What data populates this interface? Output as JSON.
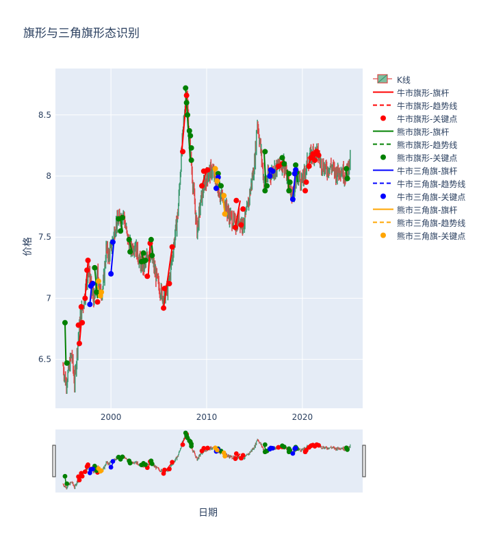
{
  "chart_data": {
    "type": "candlestick",
    "title": "旗形与三角旗形态识别",
    "xlabel": "日期",
    "ylabel": "价格",
    "x_ticks": [
      "2000",
      "2010",
      "2020"
    ],
    "y_ticks": [
      "6.5",
      "7",
      "7.5",
      "8",
      "8.5"
    ],
    "xlim": [
      1994.2,
      2026.3
    ],
    "ylim": [
      6.1,
      8.88
    ],
    "grid": true,
    "legend_position": "right",
    "rangeslider": true,
    "price_path": [
      [
        1995.0,
        6.45
      ],
      [
        1995.3,
        6.3
      ],
      [
        1995.6,
        6.42
      ],
      [
        1995.9,
        6.55
      ],
      [
        1996.2,
        6.3
      ],
      [
        1996.5,
        6.6
      ],
      [
        1996.8,
        6.85
      ],
      [
        1997.1,
        6.95
      ],
      [
        1997.4,
        7.1
      ],
      [
        1997.7,
        7.25
      ],
      [
        1998.0,
        7.05
      ],
      [
        1998.3,
        6.98
      ],
      [
        1998.6,
        7.2
      ],
      [
        1998.9,
        7.05
      ],
      [
        1999.2,
        7.1
      ],
      [
        1999.5,
        7.4
      ],
      [
        1999.8,
        7.35
      ],
      [
        2000.1,
        7.45
      ],
      [
        2000.5,
        7.6
      ],
      [
        2000.9,
        7.65
      ],
      [
        2001.3,
        7.7
      ],
      [
        2001.7,
        7.5
      ],
      [
        2002.1,
        7.4
      ],
      [
        2002.5,
        7.45
      ],
      [
        2003.0,
        7.3
      ],
      [
        2003.5,
        7.25
      ],
      [
        2004.0,
        7.4
      ],
      [
        2004.5,
        7.25
      ],
      [
        2005.0,
        7.1
      ],
      [
        2005.5,
        7.0
      ],
      [
        2006.0,
        7.1
      ],
      [
        2006.5,
        7.4
      ],
      [
        2007.0,
        7.7
      ],
      [
        2007.3,
        8.1
      ],
      [
        2007.7,
        8.55
      ],
      [
        2007.9,
        8.7
      ],
      [
        2008.2,
        8.3
      ],
      [
        2008.6,
        7.9
      ],
      [
        2009.0,
        7.55
      ],
      [
        2009.4,
        7.8
      ],
      [
        2009.8,
        7.95
      ],
      [
        2010.2,
        8.02
      ],
      [
        2010.6,
        8.05
      ],
      [
        2011.0,
        7.95
      ],
      [
        2011.4,
        7.85
      ],
      [
        2011.8,
        7.8
      ],
      [
        2012.2,
        7.7
      ],
      [
        2012.6,
        7.65
      ],
      [
        2013.0,
        7.6
      ],
      [
        2013.4,
        7.65
      ],
      [
        2013.8,
        7.6
      ],
      [
        2014.2,
        7.7
      ],
      [
        2014.6,
        7.9
      ],
      [
        2015.0,
        8.1
      ],
      [
        2015.3,
        8.45
      ],
      [
        2015.6,
        8.25
      ],
      [
        2016.0,
        7.95
      ],
      [
        2016.5,
        8.0
      ],
      [
        2017.0,
        8.05
      ],
      [
        2017.5,
        8.08
      ],
      [
        2018.0,
        8.12
      ],
      [
        2018.5,
        7.95
      ],
      [
        2019.0,
        7.85
      ],
      [
        2019.5,
        8.0
      ],
      [
        2020.0,
        7.95
      ],
      [
        2020.5,
        8.1
      ],
      [
        2021.0,
        8.18
      ],
      [
        2021.5,
        8.2
      ],
      [
        2022.0,
        8.1
      ],
      [
        2022.5,
        8.05
      ],
      [
        2023.0,
        8.08
      ],
      [
        2023.5,
        8.02
      ],
      [
        2024.0,
        8.06
      ],
      [
        2024.5,
        8.0
      ],
      [
        2025.0,
        8.12
      ]
    ],
    "bull_flag_poles": [
      [
        [
          1996.7,
          6.62
        ],
        [
          1996.9,
          6.8
        ]
      ],
      [
        [
          1997.3,
          7.0
        ],
        [
          1997.6,
          7.3
        ]
      ],
      [
        [
          2003.9,
          7.18
        ],
        [
          2004.1,
          7.45
        ]
      ],
      [
        [
          2005.5,
          6.92
        ],
        [
          2006.4,
          7.42
        ]
      ],
      [
        [
          2007.4,
          8.2
        ],
        [
          2007.9,
          8.65
        ]
      ],
      [
        [
          2009.5,
          7.92
        ],
        [
          2010.0,
          8.05
        ]
      ],
      [
        [
          2013.0,
          7.58
        ],
        [
          2013.5,
          7.8
        ]
      ],
      [
        [
          2017.3,
          8.05
        ],
        [
          2017.9,
          8.1
        ]
      ],
      [
        [
          2020.6,
          8.08
        ],
        [
          2021.0,
          8.17
        ]
      ],
      [
        [
          2021.2,
          8.15
        ],
        [
          2021.7,
          8.2
        ]
      ]
    ],
    "bull_flag_points": [
      [
        1996.6,
        6.78
      ],
      [
        1996.7,
        6.63
      ],
      [
        1996.9,
        6.93
      ],
      [
        1997.0,
        6.8
      ],
      [
        1997.3,
        7.0
      ],
      [
        1997.5,
        7.23
      ],
      [
        1997.6,
        7.31
      ],
      [
        1998.0,
        7.12
      ],
      [
        1998.6,
        6.97
      ],
      [
        2003.8,
        7.18
      ],
      [
        2004.1,
        7.45
      ],
      [
        2005.5,
        6.92
      ],
      [
        2005.6,
        7.08
      ],
      [
        2006.1,
        7.12
      ],
      [
        2006.4,
        7.42
      ],
      [
        2007.5,
        8.2
      ],
      [
        2007.9,
        8.66
      ],
      [
        2009.5,
        7.92
      ],
      [
        2009.7,
        8.04
      ],
      [
        2010.1,
        8.05
      ],
      [
        2013.0,
        7.58
      ],
      [
        2013.1,
        7.8
      ],
      [
        2013.6,
        7.6
      ],
      [
        2013.8,
        7.73
      ],
      [
        2017.5,
        8.08
      ],
      [
        2017.9,
        8.1
      ],
      [
        2020.3,
        7.88
      ],
      [
        2020.4,
        7.95
      ],
      [
        2020.7,
        8.08
      ],
      [
        2020.9,
        8.15
      ],
      [
        2021.1,
        8.18
      ],
      [
        2021.3,
        8.13
      ],
      [
        2021.5,
        8.2
      ],
      [
        2021.7,
        8.17
      ]
    ],
    "bear_flag_poles": [
      [
        [
          1995.2,
          6.8
        ],
        [
          1995.3,
          6.47
        ]
      ],
      [
        [
          1998.3,
          7.25
        ],
        [
          1998.6,
          7.0
        ]
      ],
      [
        [
          2001.0,
          7.66
        ],
        [
          2001.2,
          7.55
        ]
      ],
      [
        [
          2001.9,
          7.48
        ],
        [
          2002.2,
          7.38
        ]
      ],
      [
        [
          2003.2,
          7.37
        ],
        [
          2003.5,
          7.28
        ]
      ],
      [
        [
          2004.2,
          7.48
        ],
        [
          2004.4,
          7.35
        ]
      ],
      [
        [
          2007.8,
          8.72
        ],
        [
          2008.3,
          8.12
        ]
      ],
      [
        [
          2011.2,
          8.02
        ],
        [
          2011.4,
          7.92
        ]
      ],
      [
        [
          2016.0,
          8.2
        ],
        [
          2016.2,
          7.9
        ]
      ],
      [
        [
          2017.9,
          8.15
        ],
        [
          2018.3,
          8.08
        ]
      ],
      [
        [
          2018.4,
          8.05
        ],
        [
          2018.6,
          7.88
        ]
      ],
      [
        [
          2019.3,
          8.1
        ],
        [
          2019.5,
          7.95
        ]
      ],
      [
        [
          2024.5,
          8.06
        ],
        [
          2024.7,
          7.98
        ]
      ]
    ],
    "bear_flag_points": [
      [
        1995.2,
        6.8
      ],
      [
        1995.4,
        6.47
      ],
      [
        1998.3,
        7.25
      ],
      [
        1998.5,
        7.05
      ],
      [
        2000.8,
        7.65
      ],
      [
        2001.0,
        7.55
      ],
      [
        2001.2,
        7.66
      ],
      [
        2001.9,
        7.48
      ],
      [
        2002.0,
        7.38
      ],
      [
        2003.2,
        7.3
      ],
      [
        2003.4,
        7.37
      ],
      [
        2003.6,
        7.31
      ],
      [
        2004.2,
        7.48
      ],
      [
        2004.3,
        7.35
      ],
      [
        2007.8,
        8.72
      ],
      [
        2007.9,
        8.6
      ],
      [
        2008.0,
        8.5
      ],
      [
        2008.2,
        8.37
      ],
      [
        2008.3,
        8.33
      ],
      [
        2008.4,
        8.23
      ],
      [
        2008.4,
        8.13
      ],
      [
        2011.2,
        8.02
      ],
      [
        2011.5,
        7.92
      ],
      [
        2016.1,
        8.2
      ],
      [
        2016.1,
        7.88
      ],
      [
        2016.3,
        7.92
      ],
      [
        2017.9,
        8.15
      ],
      [
        2018.1,
        8.1
      ],
      [
        2018.6,
        8.02
      ],
      [
        2018.6,
        7.88
      ],
      [
        2018.7,
        7.95
      ],
      [
        2019.3,
        8.09
      ],
      [
        2019.4,
        8.03
      ],
      [
        2024.6,
        8.06
      ],
      [
        2024.7,
        7.98
      ]
    ],
    "bull_pennant_poles": [
      [
        [
          1997.8,
          6.95
        ],
        [
          1998.0,
          7.12
        ]
      ],
      [
        [
          2000.0,
          7.2
        ],
        [
          2000.3,
          7.46
        ]
      ],
      [
        [
          2016.5,
          8.02
        ],
        [
          2016.8,
          8.05
        ]
      ],
      [
        [
          2019.0,
          7.81
        ],
        [
          2019.3,
          8.05
        ]
      ]
    ],
    "bull_pennant_points": [
      [
        1997.8,
        6.95
      ],
      [
        1997.9,
        7.1
      ],
      [
        1998.1,
        7.12
      ],
      [
        2000.0,
        7.2
      ],
      [
        2000.2,
        7.46
      ],
      [
        2011.0,
        7.9
      ],
      [
        2011.2,
        7.99
      ],
      [
        2016.6,
        8.0
      ],
      [
        2016.7,
        8.05
      ],
      [
        2016.9,
        8.04
      ],
      [
        2019.0,
        7.81
      ],
      [
        2019.2,
        8.02
      ],
      [
        2019.3,
        8.05
      ]
    ],
    "bear_pennant_poles": [
      [
        [
          1998.6,
          7.1
        ],
        [
          1998.9,
          7.02
        ]
      ],
      [
        [
          2010.8,
          8.06
        ],
        [
          2011.0,
          7.95
        ]
      ],
      [
        [
          2011.7,
          7.83
        ],
        [
          2011.9,
          7.69
        ]
      ]
    ],
    "bear_pennant_points": [
      [
        1998.7,
        7.14
      ],
      [
        1998.9,
        7.02
      ],
      [
        1999.0,
        7.05
      ],
      [
        2010.9,
        8.06
      ],
      [
        2011.1,
        7.96
      ],
      [
        2011.8,
        7.84
      ],
      [
        2011.9,
        7.69
      ]
    ],
    "series": [
      {
        "name": "K线",
        "kind": "candlestick",
        "up_color": "#3D9970",
        "down_color": "#E04545"
      },
      {
        "name": "牛市旗形-旗杆",
        "kind": "line",
        "color": "#ff0000",
        "dash": "solid"
      },
      {
        "name": "牛市旗形-趋势线",
        "kind": "line",
        "color": "#ff0000",
        "dash": "dash"
      },
      {
        "name": "牛市旗形-关键点",
        "kind": "marker",
        "color": "#ff0000"
      },
      {
        "name": "熊市旗形-旗杆",
        "kind": "line",
        "color": "#008000",
        "dash": "solid"
      },
      {
        "name": "熊市旗形-趋势线",
        "kind": "line",
        "color": "#008000",
        "dash": "dash"
      },
      {
        "name": "熊市旗形-关键点",
        "kind": "marker",
        "color": "#008000"
      },
      {
        "name": "牛市三角旗-旗杆",
        "kind": "line",
        "color": "#0000ff",
        "dash": "solid"
      },
      {
        "name": "牛市三角旗-趋势线",
        "kind": "line",
        "color": "#0000ff",
        "dash": "dash"
      },
      {
        "name": "牛市三角旗-关键点",
        "kind": "marker",
        "color": "#0000ff"
      },
      {
        "name": "熊市三角旗-旗杆",
        "kind": "line",
        "color": "#ffa500",
        "dash": "solid"
      },
      {
        "name": "熊市三角旗-趋势线",
        "kind": "line",
        "color": "#ffa500",
        "dash": "dash"
      },
      {
        "name": "熊市三角旗-关键点",
        "kind": "marker",
        "color": "#ffa500"
      }
    ]
  }
}
